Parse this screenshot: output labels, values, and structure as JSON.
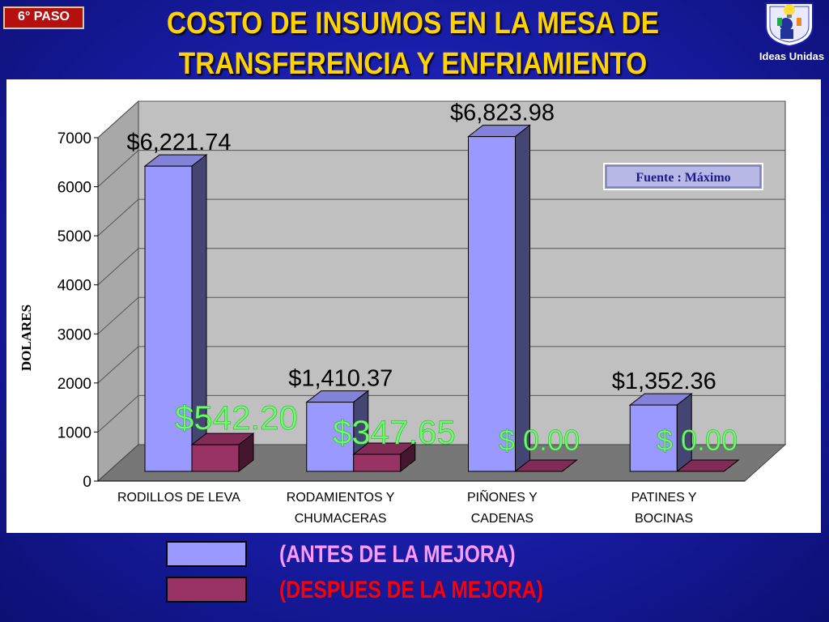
{
  "badge": {
    "text": "6° PASO"
  },
  "title": {
    "line1": "COSTO DE INSUMOS EN LA MESA DE",
    "line2": "TRANSFERENCIA Y ENFRIAMIENTO"
  },
  "logo": {
    "label": "Ideas Unidas",
    "icon": "lightbulb-head-icon"
  },
  "legend": [
    {
      "label": "(ANTES DE LA MEJORA)",
      "color": "#9999ff",
      "text_color": "#ff99ff"
    },
    {
      "label": "(DESPUES DE LA MEJORA)",
      "color": "#993366",
      "text_color": "#ff0000"
    }
  ],
  "chart_data": {
    "type": "bar",
    "categories": [
      [
        "RODILLOS DE LEVA"
      ],
      [
        "RODAMIENTOS Y",
        "CHUMACERAS"
      ],
      [
        "PIÑONES Y",
        "CADENAS"
      ],
      [
        "PATINES Y",
        "BOCINAS"
      ]
    ],
    "series": [
      {
        "name": "(ANTES DE LA MEJORA)",
        "values": [
          6221.74,
          1410.37,
          6823.98,
          1352.36
        ],
        "color": "#9999ff"
      },
      {
        "name": "(DESPUES DE LA MEJORA)",
        "values": [
          542.2,
          347.65,
          0,
          0
        ],
        "color": "#993366"
      }
    ],
    "data_labels": {
      "before": [
        "$6,221.74",
        "$1,410.37",
        "$6,823.98",
        "$1,352.36"
      ],
      "after": [
        "$542.20",
        "$347.65",
        "$ 0.00",
        "$ 0.00"
      ],
      "before_color": "#000000",
      "after_color": "#66ff66"
    },
    "ylabel": "DOLARES",
    "ylim": [
      0,
      7000
    ],
    "yticks": [
      0,
      1000,
      2000,
      3000,
      4000,
      5000,
      6000,
      7000
    ],
    "grid": true,
    "chart_style": "3d-bar",
    "annotation": "Fuente : Máximo"
  }
}
